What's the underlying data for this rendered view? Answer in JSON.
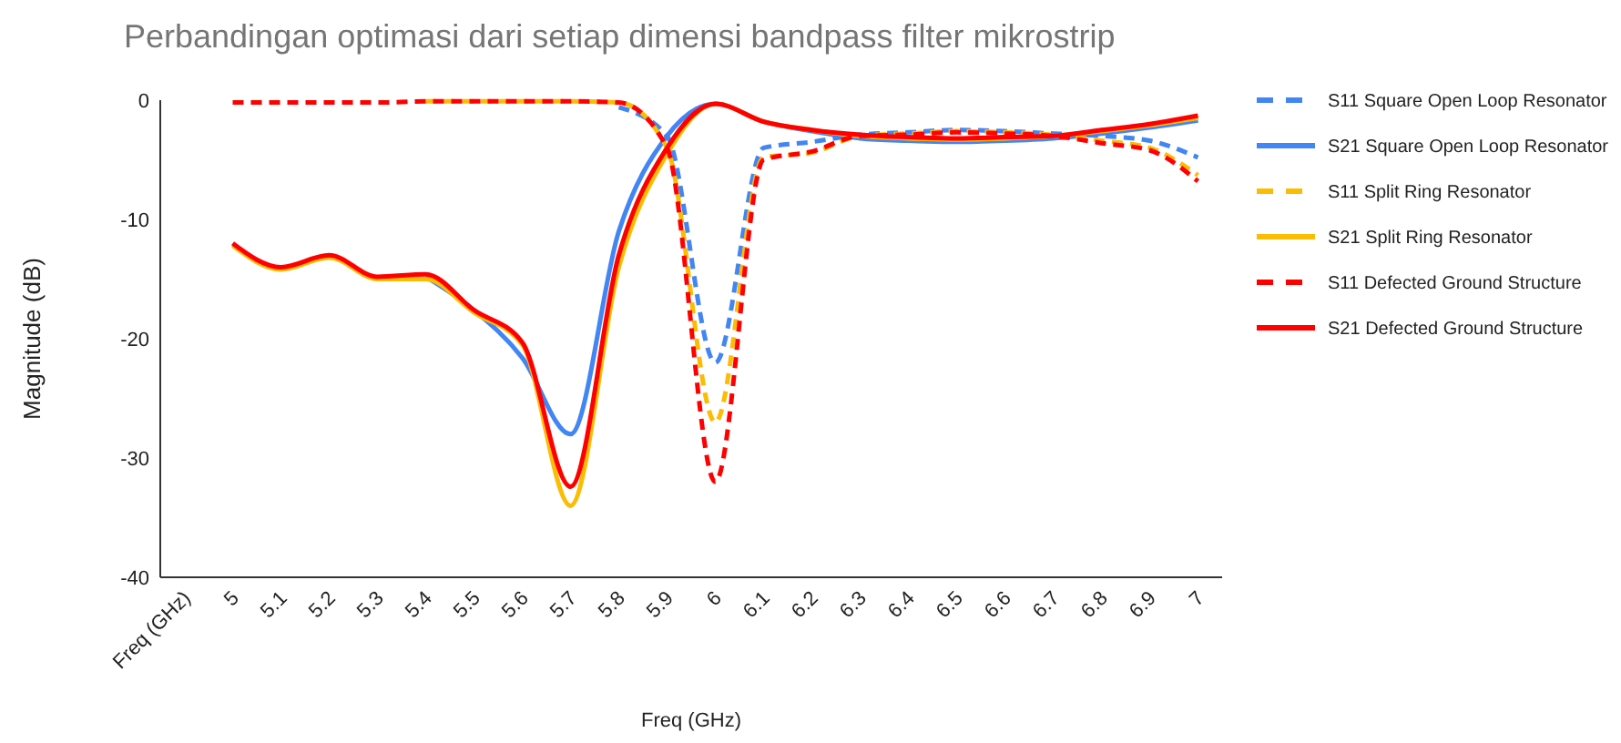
{
  "chart_data": {
    "type": "line",
    "title": "Perbandingan optimasi dari setiap dimensi bandpass filter mikrostrip",
    "xlabel": "Freq (GHz)",
    "ylabel": "Magnitude (dB)",
    "categories": [
      "Freq (GHz)",
      "5",
      "5.1",
      "5.2",
      "5.3",
      "5.4",
      "5.5",
      "5.6",
      "5.7",
      "5.8",
      "5.9",
      "6",
      "6.1",
      "6.2",
      "6.3",
      "6.4",
      "6.5",
      "6.6",
      "6.7",
      "6.8",
      "6.9",
      "7"
    ],
    "ylim": [
      -40,
      0
    ],
    "yticks": [
      -40,
      -30,
      -20,
      -10,
      0
    ],
    "grid": false,
    "legend": "right",
    "marker": "none",
    "series": [
      {
        "name": "S11 Square Open Loop Resonator",
        "color": "#4285f4",
        "line_style": "dashed",
        "values": [
          null,
          null,
          null,
          null,
          null,
          null,
          null,
          null,
          null,
          -0.6,
          -3,
          -22,
          -4,
          -3.5,
          -2.9,
          -2.7,
          -2.5,
          -2.6,
          -2.8,
          -3,
          -3.4,
          -4.8
        ]
      },
      {
        "name": "S21 Square Open Loop Resonator",
        "color": "#4285f4",
        "line_style": "solid",
        "values": [
          null,
          null,
          null,
          null,
          null,
          -14.8,
          -17.6,
          -21.6,
          -28,
          -11,
          -3,
          -0.3,
          -1.8,
          -2.6,
          -3.2,
          -3.4,
          -3.5,
          -3.4,
          -3.2,
          -2.8,
          -2.3,
          -1.7
        ]
      },
      {
        "name": "S11 Split Ring Resonator",
        "color": "#fbbc04",
        "line_style": "dashed",
        "values": [
          null,
          null,
          null,
          null,
          null,
          -0.1,
          -0.1,
          -0.1,
          -0.1,
          -0.2,
          -4,
          -27,
          -4.8,
          -4.4,
          -3,
          -2.8,
          -2.6,
          -2.7,
          -2.9,
          -3.4,
          -4,
          -6.3
        ]
      },
      {
        "name": "S21 Split Ring Resonator",
        "color": "#fbbc04",
        "line_style": "solid",
        "values": [
          null,
          -12.2,
          -14.2,
          -13.2,
          -15,
          -15,
          -17.8,
          -20.5,
          -34,
          -14,
          -4.5,
          -0.3,
          -1.8,
          -2.5,
          -3,
          -3.2,
          -3.3,
          -3.2,
          -3,
          -2.6,
          -2.1,
          -1.5
        ]
      },
      {
        "name": "S11 Defected Ground Structure",
        "color": "#ff0000",
        "line_style": "dashed",
        "values": [
          null,
          -0.2,
          -0.2,
          -0.2,
          -0.2,
          -0.1,
          -0.1,
          -0.1,
          -0.1,
          -0.2,
          -4,
          -32,
          -5,
          -4.3,
          -3,
          -2.9,
          -2.7,
          -2.8,
          -3,
          -3.6,
          -4.2,
          -6.8
        ]
      },
      {
        "name": "S21 Defected Ground Structure",
        "color": "#ff0000",
        "line_style": "solid",
        "values": [
          null,
          -12,
          -14,
          -13,
          -14.8,
          -14.6,
          -17.6,
          -20.3,
          -32.4,
          -13,
          -4,
          -0.3,
          -1.8,
          -2.5,
          -2.9,
          -3.1,
          -3.2,
          -3.1,
          -3,
          -2.5,
          -2,
          -1.3
        ]
      }
    ]
  }
}
